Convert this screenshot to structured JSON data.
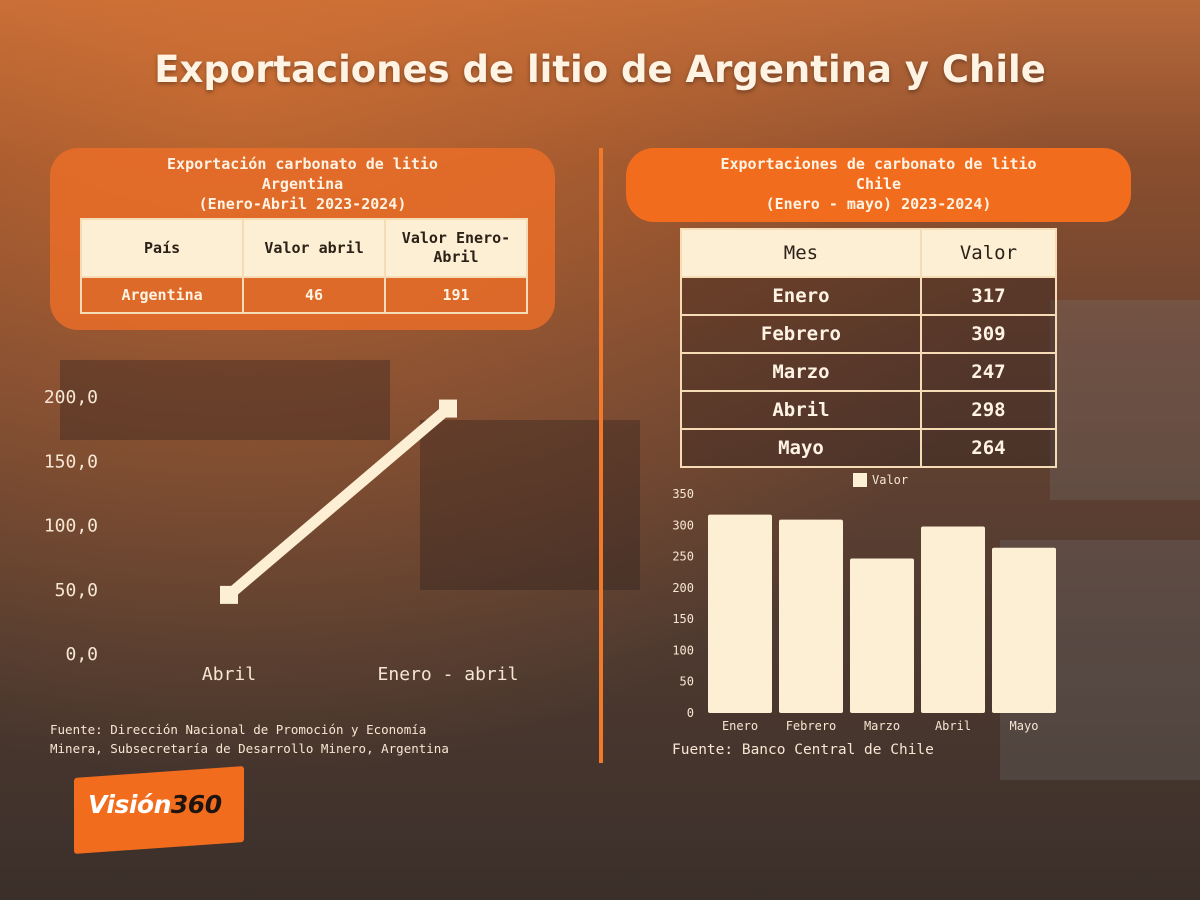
{
  "title": "Exportaciones de litio de Argentina y Chile",
  "argentina": {
    "box_title_lines": [
      "Exportación carbonato de litio",
      "Argentina",
      "(Enero-Abril 2023-2024)"
    ],
    "table": {
      "headers": [
        "País",
        "Valor abril",
        "Valor Enero-Abril"
      ],
      "rows": [
        [
          "Argentina",
          "46",
          "191"
        ]
      ]
    },
    "source_lines": [
      "Fuente: Dirección Nacional de Promoción y Economía",
      "Minera, Subsecretaría de Desarrollo Minero, Argentina"
    ]
  },
  "chile": {
    "box_title_lines": [
      "Exportaciones de carbonato de litio",
      "Chile",
      "(Enero - mayo) 2023-2024)"
    ],
    "table": {
      "headers": [
        "Mes",
        "Valor"
      ],
      "rows": [
        [
          "Enero",
          "317"
        ],
        [
          "Febrero",
          "309"
        ],
        [
          "Marzo",
          "247"
        ],
        [
          "Abril",
          "298"
        ],
        [
          "Mayo",
          "264"
        ]
      ]
    },
    "source": "Fuente: Banco Central de Chile"
  },
  "logo": {
    "word": "Visión",
    "num": "360"
  },
  "colors": {
    "accent": "#f26c1e",
    "cream": "#fdefd4",
    "text_light": "#fff3e4"
  },
  "chart_data": [
    {
      "type": "line",
      "categories": [
        "Abril",
        "Enero - abril"
      ],
      "series": [
        {
          "values": [
            46,
            191
          ]
        }
      ],
      "y_ticks": [
        "0,0",
        "50,0",
        "100,0",
        "150,0",
        "200,0"
      ],
      "ylim": [
        0,
        200
      ],
      "grid": false
    },
    {
      "type": "bar",
      "categories": [
        "Enero",
        "Febrero",
        "Marzo",
        "Abril",
        "Mayo"
      ],
      "series": [
        {
          "name": "Valor",
          "values": [
            317,
            309,
            247,
            298,
            264
          ]
        }
      ],
      "y_ticks": [
        "0",
        "50",
        "100",
        "150",
        "200",
        "250",
        "300",
        "350"
      ],
      "ylim": [
        0,
        350
      ],
      "legend": "top-center",
      "grid": false
    }
  ]
}
